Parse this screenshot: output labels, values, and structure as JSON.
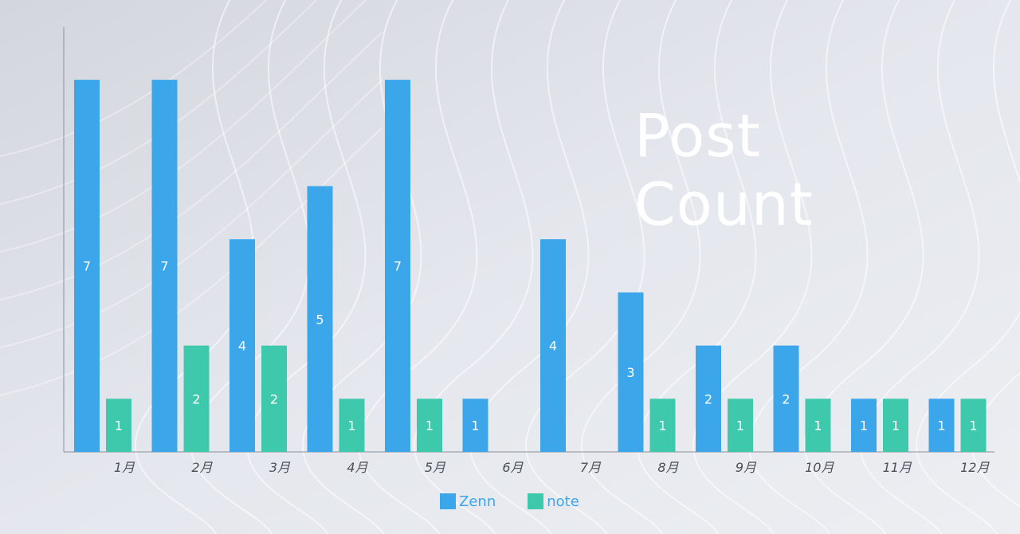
{
  "chart_data": {
    "type": "bar",
    "title_lines": [
      "Post",
      "Count"
    ],
    "categories": [
      "1月",
      "2月",
      "3月",
      "4月",
      "5月",
      "6月",
      "7月",
      "8月",
      "9月",
      "10月",
      "11月",
      "12月"
    ],
    "series": [
      {
        "name": "Zenn",
        "color": "#3ba6ea",
        "values": [
          7,
          7,
          4,
          5,
          7,
          1,
          4,
          3,
          2,
          2,
          1,
          1
        ]
      },
      {
        "name": "note",
        "color": "#3ec9ad",
        "values": [
          1,
          2,
          2,
          1,
          1,
          0,
          0,
          1,
          1,
          1,
          1,
          1
        ]
      }
    ],
    "ylim": [
      0,
      8
    ],
    "grid": false,
    "legend_position": "bottom",
    "data_labels": true
  }
}
